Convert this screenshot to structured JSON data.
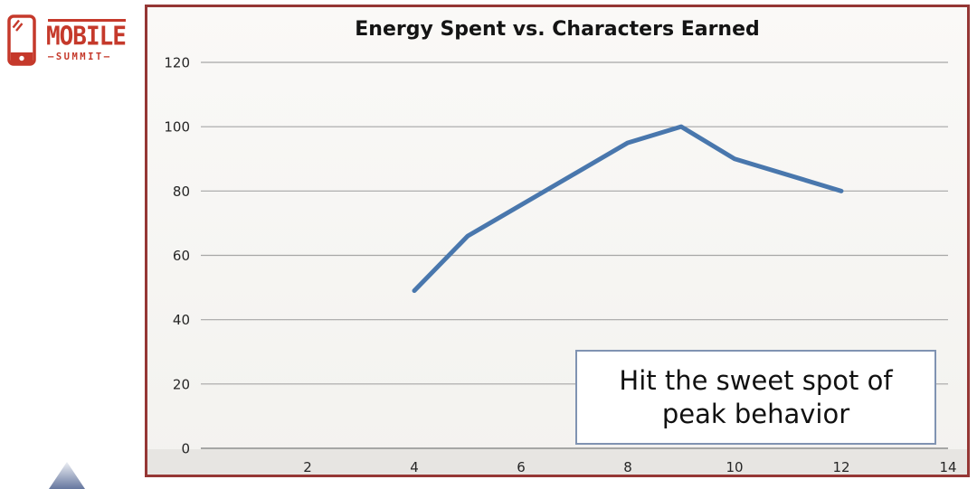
{
  "logo": {
    "title": "MOBILE",
    "subtitle": "—SUMMIT—",
    "color": "#C5392B"
  },
  "chart_data": {
    "type": "line",
    "title": "Energy Spent vs. Characters Earned",
    "x": [
      4,
      5,
      8,
      9,
      10,
      12
    ],
    "y": [
      49,
      66,
      95,
      100,
      90,
      80
    ],
    "xlim": [
      0,
      14
    ],
    "ylim": [
      0,
      120
    ],
    "x_ticks": [
      2,
      4,
      6,
      8,
      10,
      12,
      14
    ],
    "y_ticks": [
      0,
      20,
      40,
      60,
      80,
      100,
      120
    ],
    "grid": "horizontal-only",
    "legend": "none",
    "line_color": "#4977AD",
    "frame_color": "#953735",
    "gridline_color": "#A6A6A6",
    "axis_line_color": "#8C8C8C"
  },
  "callout": {
    "text": "Hit the sweet spot of peak behavior",
    "border_color": "#8093B2"
  }
}
